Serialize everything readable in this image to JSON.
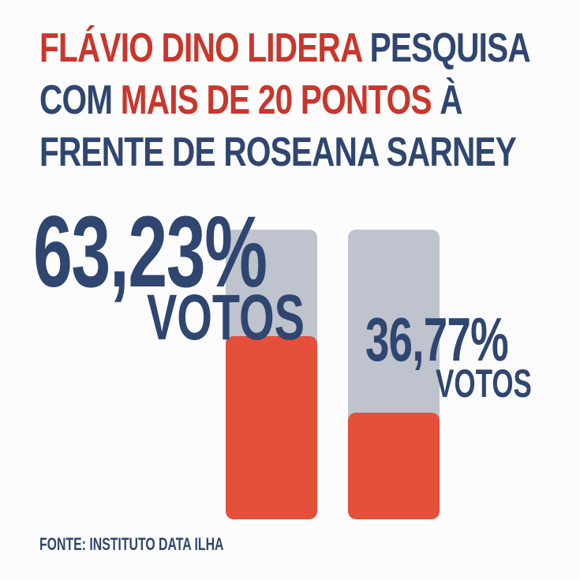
{
  "headline": {
    "line1_red": "FLÁVIO DINO LIDERA",
    "line1_blue": " PESQUISA",
    "line2_blue": "COM ",
    "line2_red": "MAIS DE 20 PONTOS",
    "line2_blue_end": " À",
    "line3_blue": "FRENTE DE ROSEANA SARNEY"
  },
  "colors": {
    "navy": "#2f4670",
    "headline_red": "#c9362b",
    "bar_fill": "#e4503a",
    "bar_track": "#bfc3cd",
    "background": "#fcfcfc"
  },
  "chart_data": {
    "type": "bar",
    "values": [
      63.23,
      36.77
    ],
    "value_labels": [
      "63,23%",
      "36,77%"
    ],
    "unit_labels": [
      "VOTOS",
      "VOTOS"
    ],
    "ylim": [
      0,
      100
    ]
  },
  "source": "FONTE: INSTITUTO DATA ILHA"
}
